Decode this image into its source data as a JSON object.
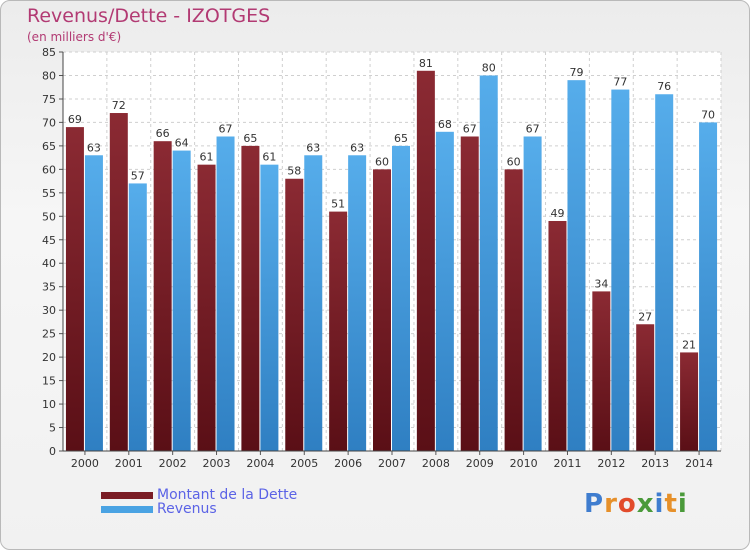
{
  "header": {
    "title": "Revenus/Dette - IZOTGES",
    "subtitle": "(en milliers d'€)"
  },
  "legend": {
    "debt_label": "Montant de la Dette",
    "revenue_label": "Revenus"
  },
  "logo": {
    "text": "Proxiti",
    "letters": [
      "P",
      "r",
      "o",
      "x",
      "i",
      "t",
      "i"
    ],
    "colors": [
      "#3f7dcf",
      "#e6902a",
      "#e24b2b",
      "#4a9a3a",
      "#3f7dcf",
      "#e6902a",
      "#4a9a3a"
    ]
  },
  "colors": {
    "debt": "#7a1c24",
    "revenue": "#4aa3e3"
  },
  "chart_data": {
    "type": "bar",
    "title": "Revenus/Dette - IZOTGES",
    "subtitle": "(en milliers d'€)",
    "categories": [
      "2000",
      "2001",
      "2002",
      "2003",
      "2004",
      "2005",
      "2006",
      "2007",
      "2008",
      "2009",
      "2010",
      "2011",
      "2012",
      "2013",
      "2014"
    ],
    "series": [
      {
        "name": "Montant de la Dette",
        "values": [
          69,
          72,
          66,
          61,
          65,
          58,
          51,
          60,
          81,
          67,
          60,
          49,
          34,
          27,
          21
        ]
      },
      {
        "name": "Revenus",
        "values": [
          63,
          57,
          64,
          67,
          61,
          63,
          63,
          65,
          68,
          80,
          67,
          79,
          77,
          76,
          70
        ]
      }
    ],
    "ylim": [
      0,
      85
    ],
    "yticks": [
      0,
      5,
      10,
      15,
      20,
      25,
      30,
      35,
      40,
      45,
      50,
      55,
      60,
      65,
      70,
      75,
      80,
      85
    ],
    "grid": true,
    "legend_position": "bottom-left"
  }
}
